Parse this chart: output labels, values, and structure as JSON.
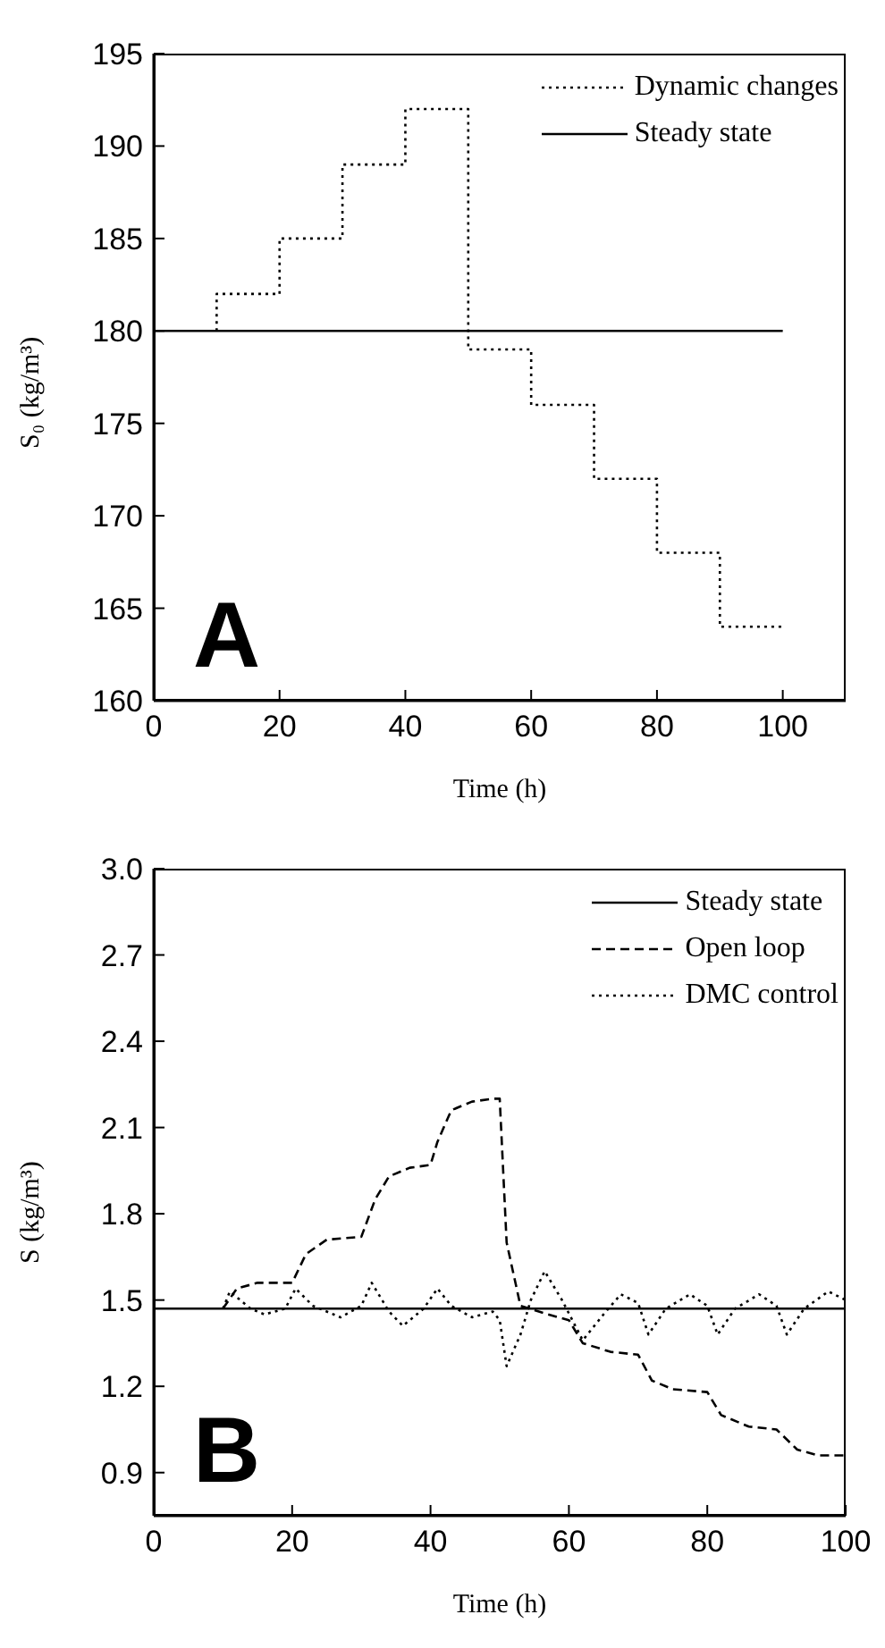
{
  "chart_data": [
    {
      "type": "line",
      "xlabel": "Time (h)",
      "ylabel": "S₀ (kg/m³)",
      "xlim": [
        0,
        110
      ],
      "ylim": [
        160,
        195
      ],
      "xticks": [
        0,
        20,
        40,
        60,
        80,
        100
      ],
      "yticks": [
        160,
        165,
        170,
        175,
        180,
        185,
        190,
        195
      ],
      "legend": "top right",
      "marker": "none",
      "annotations": [
        "A"
      ],
      "series": [
        {
          "name": "Dynamic changes",
          "type": "step",
          "color": "#000000",
          "line_style": "dotted",
          "x": [
            10,
            10,
            20,
            30,
            40,
            50,
            60,
            70,
            80,
            90,
            100
          ],
          "values": [
            180,
            182,
            185,
            189,
            192,
            179,
            176,
            172,
            168,
            164,
            164
          ]
        },
        {
          "name": "Steady state",
          "color": "#000000",
          "line_style": "solid",
          "x": [
            0,
            100
          ],
          "values": [
            180,
            180
          ]
        }
      ]
    },
    {
      "type": "line",
      "xlabel": "Time (h)",
      "ylabel": "S (kg/m³)",
      "xlim": [
        0,
        100
      ],
      "ylim": [
        0.75,
        3.0
      ],
      "xticks": [
        0,
        20,
        40,
        60,
        80,
        100
      ],
      "yticks": [
        0.9,
        1.2,
        1.5,
        1.8,
        2.1,
        2.4,
        2.7,
        {
          "value": 3,
          "label": "3.0"
        }
      ],
      "legend": "top right",
      "marker": "none",
      "annotations": [
        "B"
      ],
      "series": [
        {
          "name": "Steady state",
          "color": "#000000",
          "line_style": "solid",
          "x": [
            0,
            100
          ],
          "values": [
            1.47,
            1.47
          ]
        },
        {
          "name": "Open loop",
          "color": "#000000",
          "line_style": "dashed",
          "x": [
            10,
            12,
            15,
            20,
            22,
            25,
            30,
            32,
            34,
            37,
            40,
            41,
            43,
            46,
            49,
            50,
            51,
            53,
            57,
            60,
            62,
            66,
            70,
            72,
            75,
            80,
            82,
            86,
            90,
            93,
            96,
            100
          ],
          "values": [
            1.47,
            1.54,
            1.56,
            1.56,
            1.66,
            1.71,
            1.72,
            1.85,
            1.93,
            1.96,
            1.97,
            2.05,
            2.16,
            2.19,
            2.2,
            2.2,
            1.7,
            1.48,
            1.45,
            1.43,
            1.35,
            1.32,
            1.31,
            1.22,
            1.19,
            1.18,
            1.1,
            1.06,
            1.05,
            0.98,
            0.96,
            0.96
          ]
        },
        {
          "name": "DMC control",
          "color": "#000000",
          "line_style": "dotted",
          "x": [
            10,
            11,
            14,
            16,
            19,
            20.5,
            23,
            27,
            30,
            31.5,
            34,
            36,
            39,
            41,
            43,
            46,
            49,
            50,
            51,
            53,
            54.5,
            56.5,
            59,
            62,
            65,
            67.5,
            70,
            71.5,
            74,
            77.5,
            80,
            81.5,
            84,
            87.5,
            90,
            91.5,
            94,
            97.5,
            100
          ],
          "values": [
            1.47,
            1.53,
            1.47,
            1.45,
            1.47,
            1.54,
            1.48,
            1.44,
            1.48,
            1.56,
            1.46,
            1.41,
            1.47,
            1.54,
            1.48,
            1.44,
            1.46,
            1.43,
            1.27,
            1.38,
            1.5,
            1.6,
            1.5,
            1.36,
            1.45,
            1.52,
            1.49,
            1.38,
            1.47,
            1.52,
            1.48,
            1.38,
            1.47,
            1.52,
            1.48,
            1.38,
            1.47,
            1.53,
            1.5
          ]
        }
      ]
    }
  ]
}
